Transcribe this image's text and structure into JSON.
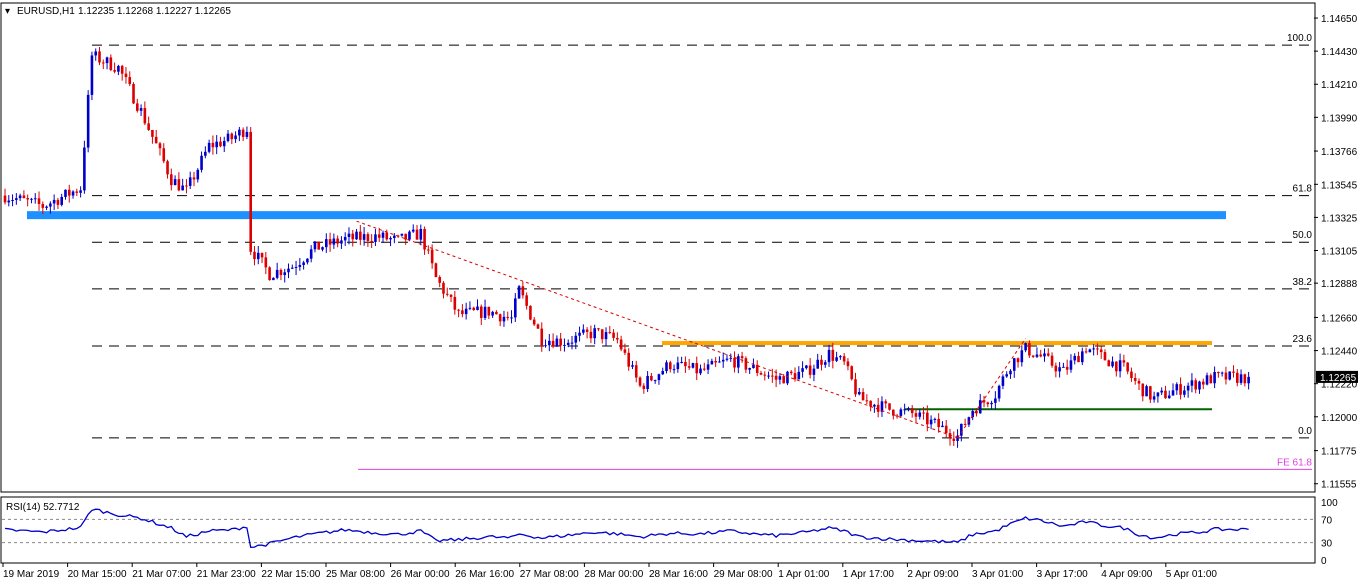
{
  "header": {
    "symbol": "EURUSD,H1",
    "ohlc": "1.12235 1.12268 1.12227 1.12265"
  },
  "rsi_header": "RSI(14) 52.7712",
  "current_price_label": "1.12265",
  "colors": {
    "bull": "#0000cc",
    "bear": "#dd0000",
    "resistance_zone": "#1e90ff",
    "orange_line": "#ffa500",
    "green_line": "#006400",
    "fe_line": "#e040e0",
    "trendline": "#dd0000",
    "rsi_line": "#0000cc"
  },
  "chart_data": [
    {
      "type": "candlestick",
      "title": "",
      "y_ticks": [
        "1.14650",
        "1.14430",
        "1.14210",
        "1.13990",
        "1.13766",
        "1.13545",
        "1.13325",
        "1.13105",
        "1.12888",
        "1.12660",
        "1.12440",
        "1.12220",
        "1.12000",
        "1.11775",
        "1.11555"
      ],
      "x_ticks": [
        "19 Mar 2019",
        "20 Mar 15:00",
        "21 Mar 07:00",
        "21 Mar 23:00",
        "22 Mar 15:00",
        "25 Mar 08:00",
        "26 Mar 00:00",
        "26 Mar 16:00",
        "27 Mar 08:00",
        "28 Mar 00:00",
        "28 Mar 16:00",
        "29 Mar 08:00",
        "1 Apr 01:00",
        "1 Apr 17:00",
        "2 Apr 09:00",
        "3 Apr 01:00",
        "3 Apr 17:00",
        "4 Apr 09:00",
        "5 Apr 01:00"
      ],
      "ylim": [
        1.115,
        1.1475
      ],
      "last_close": 1.12265,
      "fibonacci": [
        {
          "label": "100.0",
          "value": 1.1447
        },
        {
          "label": "61.8",
          "value": 1.1347
        },
        {
          "label": "50.0",
          "value": 1.1316
        },
        {
          "label": "38.2",
          "value": 1.1285
        },
        {
          "label": "23.6",
          "value": 1.1247
        },
        {
          "label": "0.0",
          "value": 1.1186
        }
      ],
      "fe_label": "FE 61.8",
      "fe_value": 1.1165,
      "resistance_zone": 1.1334,
      "orange_level": 1.1249,
      "green_level": 1.1205,
      "path": [
        [
          0,
          1.1347
        ],
        [
          10,
          1.134
        ],
        [
          20,
          1.1352
        ],
        [
          23,
          1.144
        ],
        [
          30,
          1.1432
        ],
        [
          36,
          1.1403
        ],
        [
          44,
          1.1358
        ],
        [
          48,
          1.135
        ],
        [
          54,
          1.138
        ],
        [
          60,
          1.1385
        ],
        [
          64,
          1.1392
        ],
        [
          65,
          1.1312
        ],
        [
          70,
          1.1295
        ],
        [
          76,
          1.13
        ],
        [
          82,
          1.1312
        ],
        [
          90,
          1.1318
        ],
        [
          98,
          1.132
        ],
        [
          104,
          1.1317
        ],
        [
          110,
          1.1322
        ],
        [
          114,
          1.1292
        ],
        [
          120,
          1.1268
        ],
        [
          128,
          1.127
        ],
        [
          134,
          1.1265
        ],
        [
          136,
          1.1284
        ],
        [
          142,
          1.1252
        ],
        [
          148,
          1.125
        ],
        [
          156,
          1.1256
        ],
        [
          162,
          1.1251
        ],
        [
          168,
          1.122
        ],
        [
          176,
          1.1235
        ],
        [
          184,
          1.123
        ],
        [
          192,
          1.1238
        ],
        [
          198,
          1.1232
        ],
        [
          204,
          1.1225
        ],
        [
          212,
          1.123
        ],
        [
          218,
          1.1242
        ],
        [
          222,
          1.1235
        ],
        [
          226,
          1.1212
        ],
        [
          234,
          1.1205
        ],
        [
          240,
          1.1202
        ],
        [
          246,
          1.1195
        ],
        [
          252,
          1.1187
        ],
        [
          256,
          1.1205
        ],
        [
          262,
          1.1215
        ],
        [
          266,
          1.1235
        ],
        [
          270,
          1.1245
        ],
        [
          274,
          1.124
        ],
        [
          280,
          1.123
        ],
        [
          286,
          1.1246
        ],
        [
          290,
          1.124
        ],
        [
          296,
          1.1232
        ],
        [
          300,
          1.122
        ],
        [
          304,
          1.1212
        ],
        [
          310,
          1.1218
        ],
        [
          316,
          1.1223
        ],
        [
          320,
          1.1226
        ]
      ],
      "annotations": [
        "100.0",
        "61.8",
        "50.0",
        "38.2",
        "23.6",
        "0.0",
        "FE 61.8"
      ]
    },
    {
      "type": "line",
      "title": "RSI(14) 52.7712",
      "y_ticks": [
        "100",
        "70",
        "30",
        "0"
      ],
      "ylim": [
        0,
        100
      ],
      "levels": [
        70,
        30
      ],
      "path": [
        [
          0,
          52
        ],
        [
          10,
          48
        ],
        [
          20,
          56
        ],
        [
          23,
          88
        ],
        [
          30,
          78
        ],
        [
          36,
          72
        ],
        [
          44,
          55
        ],
        [
          48,
          40
        ],
        [
          54,
          50
        ],
        [
          60,
          52
        ],
        [
          64,
          58
        ],
        [
          65,
          22
        ],
        [
          70,
          28
        ],
        [
          76,
          38
        ],
        [
          82,
          45
        ],
        [
          90,
          52
        ],
        [
          98,
          47
        ],
        [
          104,
          44
        ],
        [
          110,
          50
        ],
        [
          114,
          33
        ],
        [
          120,
          35
        ],
        [
          128,
          40
        ],
        [
          134,
          38
        ],
        [
          136,
          45
        ],
        [
          142,
          38
        ],
        [
          148,
          42
        ],
        [
          156,
          48
        ],
        [
          162,
          45
        ],
        [
          168,
          40
        ],
        [
          176,
          46
        ],
        [
          184,
          45
        ],
        [
          192,
          50
        ],
        [
          198,
          45
        ],
        [
          204,
          42
        ],
        [
          212,
          48
        ],
        [
          218,
          55
        ],
        [
          222,
          50
        ],
        [
          226,
          40
        ],
        [
          234,
          36
        ],
        [
          240,
          34
        ],
        [
          246,
          32
        ],
        [
          252,
          30
        ],
        [
          256,
          44
        ],
        [
          262,
          50
        ],
        [
          266,
          62
        ],
        [
          270,
          72
        ],
        [
          274,
          68
        ],
        [
          280,
          58
        ],
        [
          286,
          66
        ],
        [
          290,
          60
        ],
        [
          296,
          55
        ],
        [
          300,
          44
        ],
        [
          304,
          38
        ],
        [
          310,
          45
        ],
        [
          316,
          48
        ],
        [
          320,
          52.77
        ]
      ]
    }
  ]
}
